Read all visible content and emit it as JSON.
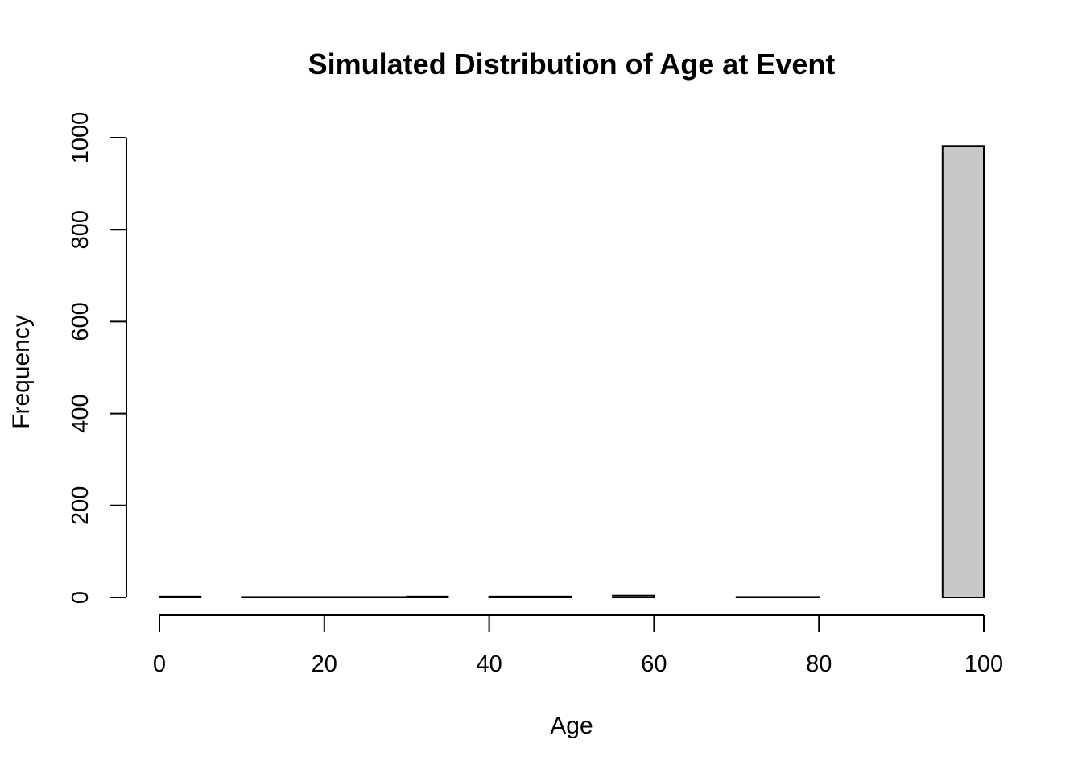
{
  "chart_data": {
    "type": "bar",
    "title": "Simulated Distribution of Age at Event",
    "xlabel": "Age",
    "ylabel": "Frequency",
    "bin_edges": [
      0,
      5,
      10,
      15,
      20,
      25,
      30,
      35,
      40,
      45,
      50,
      55,
      60,
      65,
      70,
      75,
      80,
      85,
      90,
      95,
      100
    ],
    "values": [
      2,
      0,
      1,
      1,
      1,
      1,
      2,
      0,
      2,
      2,
      0,
      4,
      0,
      0,
      1,
      1,
      0,
      0,
      0,
      982
    ],
    "xlim": [
      0,
      100
    ],
    "ylim": [
      0,
      1000
    ],
    "x_ticks": [
      0,
      20,
      40,
      60,
      80,
      100
    ],
    "y_ticks": [
      0,
      200,
      400,
      600,
      800,
      1000
    ],
    "bar_color": "#c8c8c8",
    "grid": false,
    "legend": "none"
  }
}
